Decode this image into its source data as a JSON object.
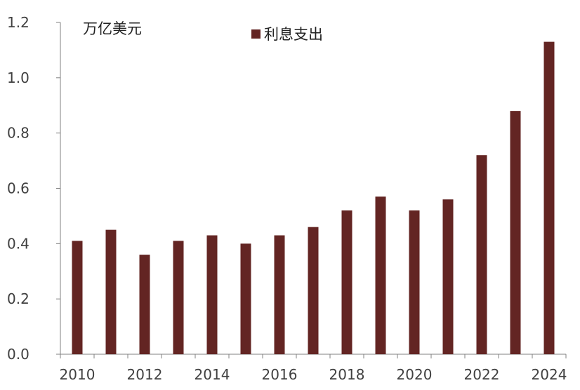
{
  "chart_data": {
    "type": "bar",
    "title": "",
    "ylabel": "万亿美元",
    "xlabel": "",
    "ylim": [
      0,
      1.2
    ],
    "yticks": [
      "0.0",
      "0.2",
      "0.4",
      "0.6",
      "0.8",
      "1.0",
      "1.2"
    ],
    "xtick_labels": [
      "2010",
      "2012",
      "2014",
      "2016",
      "2018",
      "2020",
      "2022",
      "2024"
    ],
    "categories": [
      "2010",
      "2011",
      "2012",
      "2013",
      "2014",
      "2015",
      "2016",
      "2017",
      "2018",
      "2019",
      "2020",
      "2021",
      "2022",
      "2023",
      "2024"
    ],
    "series": [
      {
        "name": "利息支出",
        "color": "#632523",
        "values": [
          0.41,
          0.45,
          0.36,
          0.41,
          0.43,
          0.4,
          0.43,
          0.46,
          0.52,
          0.57,
          0.52,
          0.56,
          0.72,
          0.88,
          1.13
        ]
      }
    ],
    "legend_position": "top",
    "grid": false
  }
}
